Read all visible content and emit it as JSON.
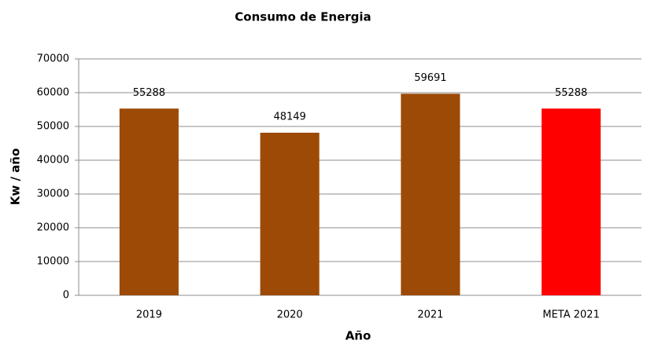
{
  "chart_data": {
    "type": "bar",
    "title": "Consumo de Energia",
    "xlabel": "Año",
    "ylabel": "Kw / año",
    "categories": [
      "2019",
      "2020",
      "2021",
      "META 2021"
    ],
    "values": [
      55288,
      48149,
      59691,
      55288
    ],
    "colors": [
      "#9c4a06",
      "#9c4a06",
      "#9c4a06",
      "#ff0000"
    ],
    "ylim": [
      0,
      70000
    ],
    "yticks": [
      0,
      10000,
      20000,
      30000,
      40000,
      50000,
      60000,
      70000
    ],
    "grid": true,
    "data_labels": true
  }
}
